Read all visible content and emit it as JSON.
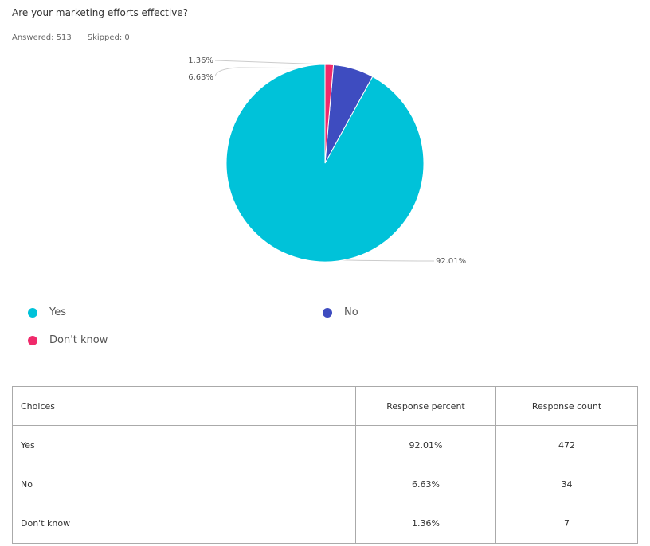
{
  "question": "Are your marketing efforts effective?",
  "meta": {
    "answered": "Answered: 513",
    "skipped": "Skipped: 0"
  },
  "chart_data": {
    "type": "pie",
    "slices": [
      {
        "label": "Yes",
        "value": 92.01,
        "percent_label": "92.01%",
        "color": "#00C2D9"
      },
      {
        "label": "No",
        "value": 6.63,
        "percent_label": "6.63%",
        "color": "#3E4CC0"
      },
      {
        "label": "Don't know",
        "value": 1.36,
        "percent_label": "1.36%",
        "color": "#F02A6B"
      }
    ],
    "legend_placement": "bottom"
  },
  "table": {
    "headers": [
      "Choices",
      "Response percent",
      "Response count"
    ],
    "rows": [
      [
        "Yes",
        "92.01%",
        "472"
      ],
      [
        "No",
        "6.63%",
        "34"
      ],
      [
        "Don't know",
        "1.36%",
        "7"
      ]
    ]
  }
}
